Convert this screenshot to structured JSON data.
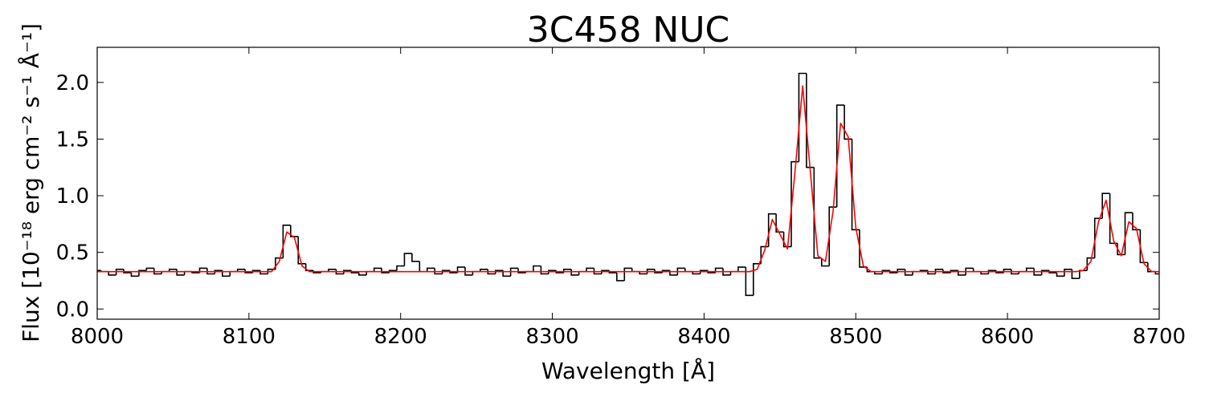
{
  "chart_data": {
    "type": "line",
    "title": "3C458 NUC",
    "xlabel": "Wavelength [Å]",
    "ylabel": "Flux [10⁻¹⁸ erg cm⁻² s⁻¹ Å⁻¹]",
    "xlim": [
      8000,
      8700
    ],
    "xticks": [
      8000,
      8100,
      8200,
      8300,
      8400,
      8500,
      8600,
      8700
    ],
    "ylim": [
      -0.09,
      2.31
    ],
    "yticks": [
      {
        "value": 0.0,
        "label": "0.0"
      },
      0.5,
      {
        "value": 1.0,
        "label": "1.0"
      },
      1.5,
      {
        "value": 2.0,
        "label": "2.0"
      }
    ],
    "x": [
      8000,
      8005,
      8010,
      8015,
      8020,
      8025,
      8030,
      8035,
      8040,
      8045,
      8050,
      8055,
      8060,
      8065,
      8070,
      8075,
      8080,
      8085,
      8090,
      8095,
      8100,
      8105,
      8110,
      8115,
      8120,
      8125,
      8130,
      8135,
      8140,
      8145,
      8150,
      8155,
      8160,
      8165,
      8170,
      8175,
      8180,
      8185,
      8190,
      8195,
      8200,
      8205,
      8210,
      8215,
      8220,
      8225,
      8230,
      8235,
      8240,
      8245,
      8250,
      8255,
      8260,
      8265,
      8270,
      8275,
      8280,
      8285,
      8290,
      8295,
      8300,
      8305,
      8310,
      8315,
      8320,
      8325,
      8330,
      8335,
      8340,
      8345,
      8350,
      8355,
      8360,
      8365,
      8370,
      8375,
      8380,
      8385,
      8390,
      8395,
      8400,
      8405,
      8410,
      8415,
      8420,
      8425,
      8430,
      8435,
      8440,
      8445,
      8450,
      8455,
      8460,
      8465,
      8470,
      8475,
      8480,
      8485,
      8490,
      8495,
      8500,
      8505,
      8510,
      8515,
      8520,
      8525,
      8530,
      8535,
      8540,
      8545,
      8550,
      8555,
      8560,
      8565,
      8570,
      8575,
      8580,
      8585,
      8590,
      8595,
      8600,
      8605,
      8610,
      8615,
      8620,
      8625,
      8630,
      8635,
      8640,
      8645,
      8650,
      8655,
      8660,
      8665,
      8670,
      8675,
      8680,
      8685,
      8690,
      8695,
      8700
    ],
    "series": [
      {
        "color": "#000000",
        "drawstyle": "steps-mid",
        "values": [
          0.34,
          0.33,
          0.3,
          0.35,
          0.32,
          0.29,
          0.34,
          0.36,
          0.31,
          0.33,
          0.35,
          0.3,
          0.33,
          0.32,
          0.36,
          0.31,
          0.34,
          0.29,
          0.33,
          0.35,
          0.32,
          0.34,
          0.31,
          0.35,
          0.45,
          0.74,
          0.64,
          0.4,
          0.34,
          0.32,
          0.33,
          0.35,
          0.31,
          0.34,
          0.32,
          0.3,
          0.33,
          0.36,
          0.32,
          0.34,
          0.38,
          0.49,
          0.42,
          0.33,
          0.36,
          0.31,
          0.34,
          0.32,
          0.37,
          0.3,
          0.33,
          0.35,
          0.31,
          0.34,
          0.29,
          0.36,
          0.32,
          0.33,
          0.38,
          0.31,
          0.34,
          0.32,
          0.35,
          0.3,
          0.33,
          0.36,
          0.31,
          0.34,
          0.32,
          0.25,
          0.36,
          0.33,
          0.31,
          0.35,
          0.32,
          0.34,
          0.3,
          0.36,
          0.33,
          0.31,
          0.34,
          0.32,
          0.36,
          0.3,
          0.33,
          0.37,
          0.12,
          0.4,
          0.55,
          0.84,
          0.68,
          0.55,
          1.3,
          2.08,
          1.25,
          0.45,
          0.38,
          0.9,
          1.8,
          1.5,
          0.7,
          0.37,
          0.33,
          0.31,
          0.34,
          0.32,
          0.35,
          0.3,
          0.33,
          0.34,
          0.31,
          0.35,
          0.32,
          0.34,
          0.3,
          0.36,
          0.33,
          0.31,
          0.34,
          0.32,
          0.35,
          0.31,
          0.33,
          0.36,
          0.3,
          0.34,
          0.32,
          0.29,
          0.35,
          0.27,
          0.34,
          0.45,
          0.8,
          1.02,
          0.58,
          0.48,
          0.85,
          0.7,
          0.41,
          0.33,
          0.31
        ]
      },
      {
        "color": "#ff0000",
        "drawstyle": "default",
        "values": [
          0.33,
          0.33,
          0.33,
          0.33,
          0.33,
          0.33,
          0.33,
          0.33,
          0.33,
          0.33,
          0.33,
          0.33,
          0.33,
          0.33,
          0.33,
          0.33,
          0.33,
          0.33,
          0.33,
          0.33,
          0.33,
          0.33,
          0.33,
          0.33,
          0.42,
          0.68,
          0.63,
          0.38,
          0.33,
          0.33,
          0.33,
          0.33,
          0.33,
          0.33,
          0.33,
          0.33,
          0.33,
          0.33,
          0.33,
          0.33,
          0.33,
          0.33,
          0.33,
          0.33,
          0.33,
          0.33,
          0.33,
          0.33,
          0.33,
          0.33,
          0.33,
          0.33,
          0.33,
          0.33,
          0.33,
          0.33,
          0.33,
          0.33,
          0.33,
          0.33,
          0.33,
          0.33,
          0.33,
          0.33,
          0.33,
          0.33,
          0.33,
          0.33,
          0.33,
          0.33,
          0.33,
          0.33,
          0.33,
          0.33,
          0.33,
          0.33,
          0.33,
          0.33,
          0.33,
          0.33,
          0.33,
          0.33,
          0.33,
          0.33,
          0.33,
          0.33,
          0.33,
          0.35,
          0.52,
          0.79,
          0.66,
          0.53,
          1.22,
          1.97,
          1.22,
          0.47,
          0.42,
          0.86,
          1.64,
          1.52,
          0.72,
          0.38,
          0.33,
          0.33,
          0.33,
          0.33,
          0.33,
          0.33,
          0.33,
          0.33,
          0.33,
          0.33,
          0.33,
          0.33,
          0.33,
          0.33,
          0.33,
          0.33,
          0.33,
          0.33,
          0.33,
          0.33,
          0.33,
          0.33,
          0.33,
          0.33,
          0.33,
          0.33,
          0.33,
          0.33,
          0.34,
          0.42,
          0.77,
          0.96,
          0.6,
          0.47,
          0.77,
          0.71,
          0.4,
          0.33,
          0.33
        ]
      }
    ]
  }
}
